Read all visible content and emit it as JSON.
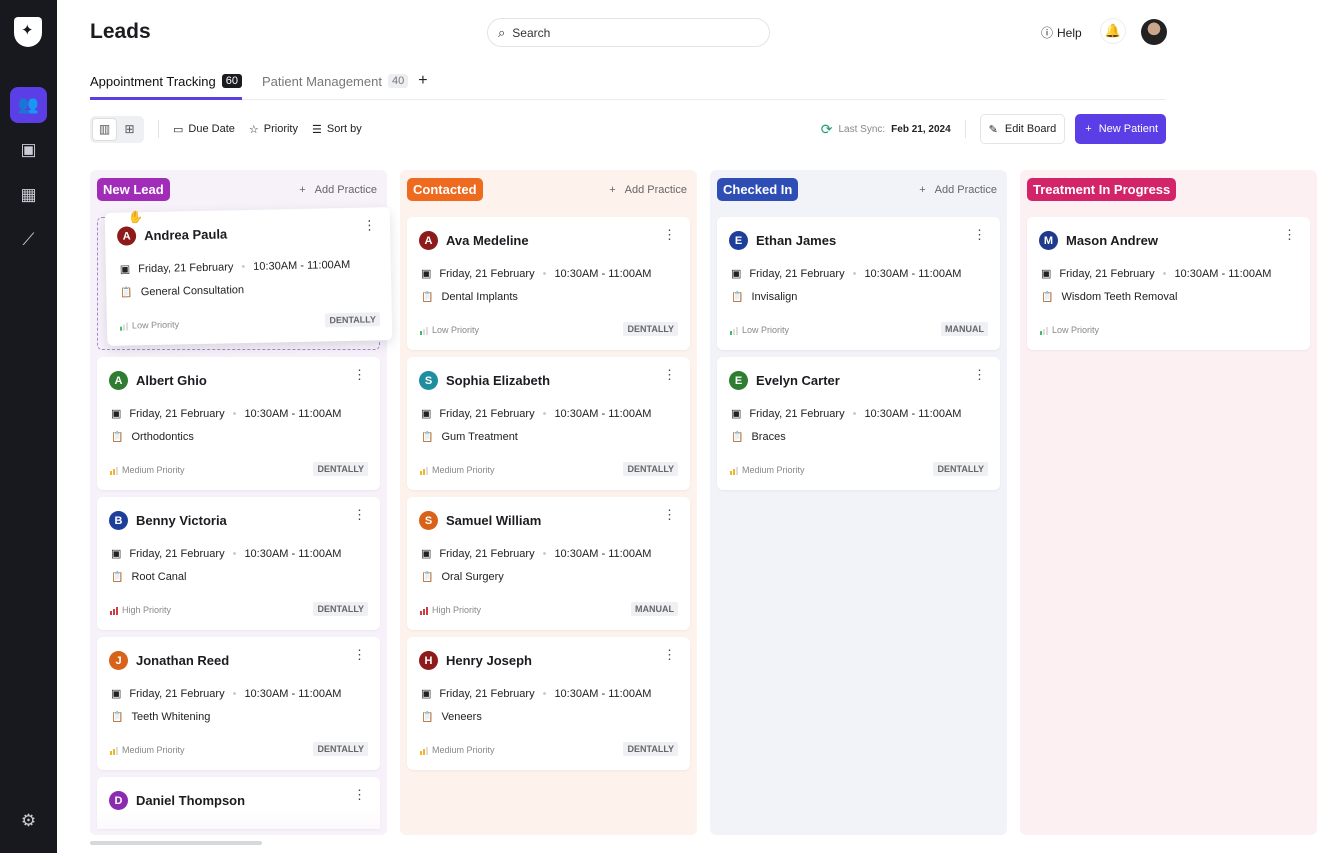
{
  "header": {
    "title": "Leads",
    "search_placeholder": "Search",
    "help": "Help"
  },
  "tabs": [
    {
      "label": "Appointment Tracking",
      "count": "60",
      "active": true
    },
    {
      "label": "Patient Management",
      "count": "40",
      "active": false
    }
  ],
  "toolbar": {
    "due_date": "Due Date",
    "priority": "Priority",
    "sort_by": "Sort by",
    "last_sync_label": "Last Sync:",
    "last_sync_value": "Feb 21, 2024",
    "edit_board": "Edit Board",
    "new_patient": "New Patient"
  },
  "colors": {
    "accent": "#5b3ee6",
    "sync": "#1f9d6b"
  },
  "columns": [
    {
      "title": "New Lead",
      "color": "#a02cb8",
      "bg": "#f7f1fa",
      "add": "Add Practice",
      "cards": [
        {
          "initial": "A",
          "name": "Andrea Paula",
          "avatar": "#8e1b1b",
          "date": "Friday, 21 February",
          "time": "10:30AM - 11:00AM",
          "treatment": "General Consultation",
          "priority": "Low Priority",
          "source": "DENTALLY",
          "dragging": true
        },
        {
          "initial": "A",
          "name": "Albert Ghio",
          "avatar": "#2e7d32",
          "date": "Friday, 21 February",
          "time": "10:30AM - 11:00AM",
          "treatment": "Orthodontics",
          "priority": "Medium Priority",
          "source": "DENTALLY"
        },
        {
          "initial": "B",
          "name": "Benny Victoria",
          "avatar": "#1e3f99",
          "date": "Friday, 21 February",
          "time": "10:30AM - 11:00AM",
          "treatment": "Root Canal",
          "priority": "High Priority",
          "source": "DENTALLY"
        },
        {
          "initial": "J",
          "name": "Jonathan Reed",
          "avatar": "#d8621a",
          "date": "Friday, 21 February",
          "time": "10:30AM - 11:00AM",
          "treatment": "Teeth Whitening",
          "priority": "Medium Priority",
          "source": "DENTALLY"
        },
        {
          "initial": "D",
          "name": "Daniel Thompson",
          "avatar": "#8a2bb0"
        }
      ]
    },
    {
      "title": "Contacted",
      "color": "#ee6a1f",
      "bg": "#fdf3ec",
      "add": "Add Practice",
      "cards": [
        {
          "initial": "A",
          "name": "Ava Medeline",
          "avatar": "#8e1b1b",
          "date": "Friday, 21 February",
          "time": "10:30AM - 11:00AM",
          "treatment": "Dental Implants",
          "priority": "Low Priority",
          "source": "DENTALLY"
        },
        {
          "initial": "S",
          "name": "Sophia Elizabeth",
          "avatar": "#1f8ea0",
          "date": "Friday, 21 February",
          "time": "10:30AM - 11:00AM",
          "treatment": "Gum Treatment",
          "priority": "Medium Priority",
          "source": "DENTALLY"
        },
        {
          "initial": "S",
          "name": "Samuel William",
          "avatar": "#d8621a",
          "date": "Friday, 21 February",
          "time": "10:30AM - 11:00AM",
          "treatment": "Oral Surgery",
          "priority": "High Priority",
          "source": "MANUAL"
        },
        {
          "initial": "H",
          "name": "Henry Joseph",
          "avatar": "#8e1b1b",
          "date": "Friday, 21 February",
          "time": "10:30AM - 11:00AM",
          "treatment": "Veneers",
          "priority": "Medium Priority",
          "source": "DENTALLY"
        }
      ]
    },
    {
      "title": "Checked In",
      "color": "#2f4eb5",
      "bg": "#f1f3f9",
      "add": "Add Practice",
      "cards": [
        {
          "initial": "E",
          "name": "Ethan James",
          "avatar": "#1e3f99",
          "date": "Friday, 21 February",
          "time": "10:30AM - 11:00AM",
          "treatment": "Invisalign",
          "priority": "Low Priority",
          "source": "MANUAL"
        },
        {
          "initial": "E",
          "name": "Evelyn Carter",
          "avatar": "#2e7d32",
          "date": "Friday, 21 February",
          "time": "10:30AM - 11:00AM",
          "treatment": "Braces",
          "priority": "Medium Priority",
          "source": "DENTALLY"
        }
      ]
    },
    {
      "title": "Treatment In Progress",
      "color": "#d3246a",
      "bg": "#fdf0f3",
      "add": "",
      "cards": [
        {
          "initial": "M",
          "name": "Mason Andrew",
          "avatar": "#1e3a8a",
          "date": "Friday, 21 February",
          "time": "10:30AM - 11:00AM",
          "treatment": "Wisdom Teeth Removal",
          "priority": "Low Priority",
          "source": ""
        }
      ]
    }
  ]
}
